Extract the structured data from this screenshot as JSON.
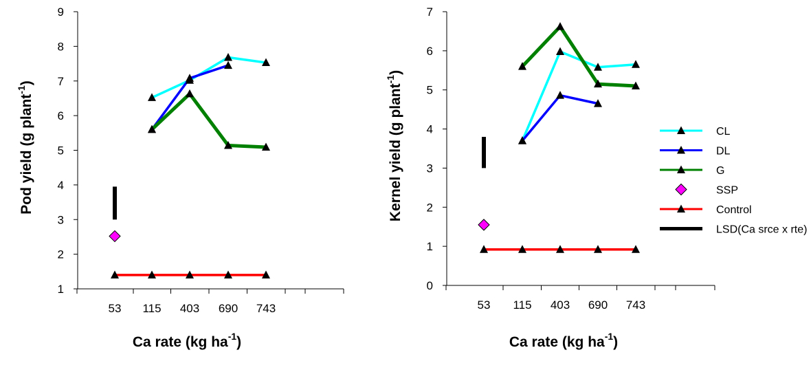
{
  "chart_data": [
    {
      "type": "line",
      "title": "",
      "xlabel": "Ca rate (kg ha",
      "xlabel_sup": "-1",
      "xlabel_end": ")",
      "ylabel": "Pod yield (g plant",
      "ylabel_sup": "-1",
      "ylabel_end": ")",
      "categories": [
        "53",
        "115",
        "403",
        "690",
        "743"
      ],
      "ylim": [
        1,
        9
      ],
      "yticks": [
        1,
        2,
        3,
        4,
        5,
        6,
        7,
        8,
        9
      ],
      "grid": false,
      "series": [
        {
          "name": "CL",
          "color": "#00FFFF",
          "marker": "triangle",
          "values": [
            null,
            6.52,
            7.02,
            7.68,
            7.53
          ]
        },
        {
          "name": "DL",
          "color": "#0000FF",
          "marker": "triangle",
          "values": [
            null,
            5.6,
            7.08,
            7.45,
            null
          ]
        },
        {
          "name": "G",
          "color": "#008000",
          "marker": "triangle",
          "values": [
            null,
            5.6,
            6.63,
            5.14,
            5.09
          ]
        },
        {
          "name": "SSP",
          "color": "#FF00FF",
          "marker": "diamond",
          "values": [
            2.52,
            null,
            null,
            null,
            null
          ]
        },
        {
          "name": "Control",
          "color": "#FF0000",
          "marker": "triangle",
          "values": [
            1.4,
            1.4,
            1.4,
            1.4,
            1.4
          ]
        }
      ],
      "lsd": {
        "name": "LSD(Ca srce x rte)",
        "category": "53",
        "low": 3.0,
        "high": 3.95
      }
    },
    {
      "type": "line",
      "title": "",
      "xlabel": "Ca rate (kg ha",
      "xlabel_sup": "-1",
      "xlabel_end": ")",
      "ylabel": "Kernel yield (g plant",
      "ylabel_sup": "-1",
      "ylabel_end": ")",
      "categories": [
        "53",
        "115",
        "403",
        "690",
        "743"
      ],
      "ylim": [
        0,
        7
      ],
      "yticks": [
        0,
        1,
        2,
        3,
        4,
        5,
        6,
        7
      ],
      "grid": false,
      "series": [
        {
          "name": "CL",
          "color": "#00FFFF",
          "marker": "triangle",
          "values": [
            null,
            3.7,
            5.98,
            5.58,
            5.65
          ]
        },
        {
          "name": "DL",
          "color": "#0000FF",
          "marker": "triangle",
          "values": [
            null,
            3.7,
            4.86,
            4.65,
            null
          ]
        },
        {
          "name": "G",
          "color": "#008000",
          "marker": "triangle",
          "values": [
            null,
            5.6,
            6.62,
            5.15,
            5.1
          ]
        },
        {
          "name": "SSP",
          "color": "#FF00FF",
          "marker": "diamond",
          "values": [
            1.55,
            null,
            null,
            null,
            null
          ]
        },
        {
          "name": "Control",
          "color": "#FF0000",
          "marker": "triangle",
          "values": [
            0.92,
            0.92,
            0.92,
            0.92,
            0.92
          ]
        }
      ],
      "lsd": {
        "name": "LSD(Ca srce x rte)",
        "category": "53",
        "low": 3.0,
        "high": 3.8
      }
    }
  ],
  "legend": {
    "placement": "right",
    "entries": [
      {
        "label": "CL",
        "color": "#00FFFF",
        "marker": "triangle"
      },
      {
        "label": "DL",
        "color": "#0000FF",
        "marker": "triangle"
      },
      {
        "label": "G",
        "color": "#008000",
        "marker": "triangle"
      },
      {
        "label": "SSP",
        "color": "#FF00FF",
        "marker": "diamond"
      },
      {
        "label": "Control",
        "color": "#FF0000",
        "marker": "triangle"
      },
      {
        "label": "LSD(Ca srce x rte)",
        "color": "#000000",
        "marker": "none"
      }
    ]
  }
}
